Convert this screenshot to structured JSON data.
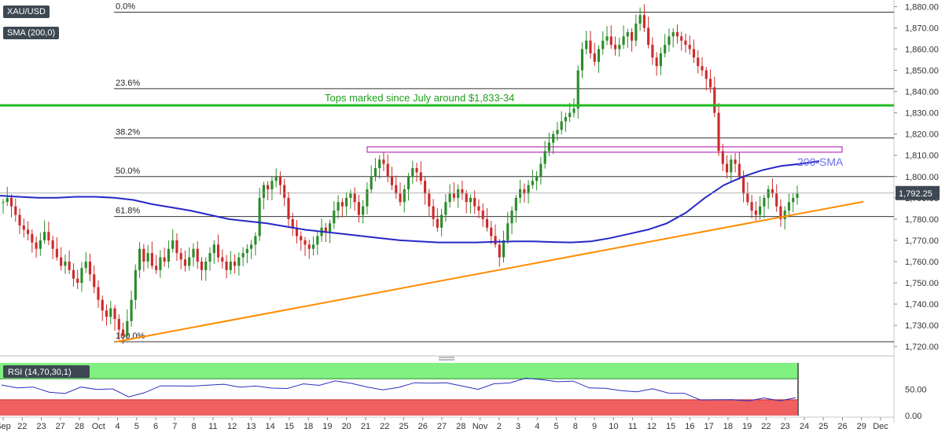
{
  "symbol": "XAU/USD",
  "indicator_label": "SMA (200,0)",
  "rsi_label": "RSI (14,70,30,1)",
  "last_price": "1,792.25",
  "colors": {
    "up_candle": "#2a8c2a",
    "down_candle": "#cc2b2b",
    "sma": "#2727c8",
    "support_line": "#ff8c00",
    "resistance_line": "#22bb22",
    "zone": "#bb33bb",
    "rsi_line": "#2d2dbf",
    "rsi_overbought": "#80f080",
    "rsi_oversold": "#f06060"
  },
  "chart_data": {
    "type": "candlestick",
    "timeframe": "4H",
    "price_axis": {
      "ylim": [
        1716,
        1882
      ],
      "ticks": [
        "1,880.00",
        "1,870.00",
        "1,860.00",
        "1,850.00",
        "1,840.00",
        "1,830.00",
        "1,820.00",
        "1,810.00",
        "1,800.00",
        "1,790.00",
        "1,780.00",
        "1,770.00",
        "1,760.00",
        "1,750.00",
        "1,740.00",
        "1,730.00",
        "1,720.00"
      ],
      "tick_values": [
        1880,
        1870,
        1860,
        1850,
        1840,
        1830,
        1820,
        1810,
        1800,
        1790,
        1780,
        1770,
        1760,
        1750,
        1740,
        1730,
        1720
      ]
    },
    "x_axis": {
      "labels": [
        "Sep",
        "22",
        "23",
        "27",
        "28",
        "Oct",
        "4",
        "5",
        "6",
        "7",
        "8",
        "11",
        "12",
        "13",
        "14",
        "15",
        "18",
        "19",
        "20",
        "21",
        "22",
        "25",
        "26",
        "27",
        "28",
        "Nov",
        "2",
        "3",
        "4",
        "5",
        "8",
        "9",
        "10",
        "11",
        "12",
        "15",
        "16",
        "17",
        "18",
        "19",
        "22",
        "23",
        "24",
        "25",
        "26",
        "29",
        "Dec"
      ]
    },
    "fibonacci": [
      {
        "label": "0.0%",
        "value": 1877.4
      },
      {
        "label": "23.6%",
        "value": 1841.4
      },
      {
        "label": "38.2%",
        "value": 1818.2
      },
      {
        "label": "50.0%",
        "value": 1800.0
      },
      {
        "label": "61.8%",
        "value": 1781.2
      },
      {
        "label": "100.0%",
        "value": 1722.3
      }
    ],
    "horizontal_resistance": {
      "label": "Tops marked since July around $1,833-34",
      "value": 1833.5
    },
    "resistance_zone": {
      "low": 1811.5,
      "high": 1814
    },
    "sma_label": "200-SMA",
    "sma_200": [
      1791,
      1790.5,
      1790,
      1790,
      1790.5,
      1790.5,
      1790,
      1789,
      1787,
      1785.5,
      1784,
      1782,
      1780,
      1779,
      1778,
      1776.5,
      1775,
      1774,
      1773,
      1772,
      1771,
      1770,
      1769.5,
      1769,
      1769,
      1769,
      1769.3,
      1769.5,
      1769.5,
      1769.2,
      1769,
      1769.5,
      1771,
      1773,
      1775,
      1778,
      1783,
      1790,
      1796,
      1800,
      1803,
      1805,
      1806,
      1807.3
    ],
    "support_trendline": [
      [
        1722.3,
        0
      ],
      [
        1788.2,
        1
      ]
    ],
    "current_price": 1792.25,
    "rsi": {
      "ylim": [
        0,
        100
      ],
      "ticks": [
        "50.00",
        "0.00"
      ],
      "tick_values": [
        50,
        0
      ],
      "overbought": 70,
      "oversold": 30,
      "values": [
        58,
        54,
        52,
        47,
        40,
        55,
        50,
        49,
        38,
        41,
        58,
        56,
        55,
        60,
        57,
        56,
        55,
        52,
        53,
        58,
        60,
        64,
        62,
        55,
        47,
        56,
        60,
        63,
        62,
        55,
        52,
        58,
        64,
        70,
        68,
        66,
        63,
        55,
        50,
        48,
        46,
        49,
        45,
        40,
        31,
        30,
        29,
        30,
        31,
        30,
        33
      ]
    }
  }
}
